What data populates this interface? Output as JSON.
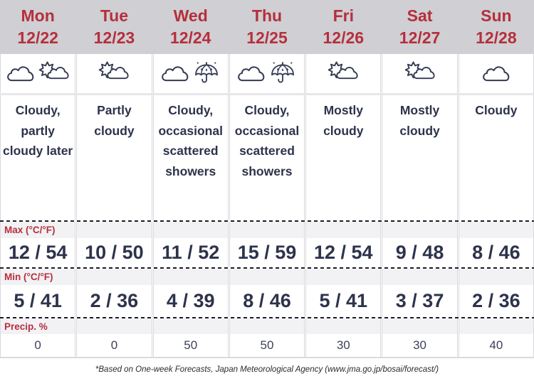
{
  "colors": {
    "header_bg": "#cfcfd4",
    "accent_red": "#b52f3b",
    "text_dark": "#2d334b",
    "band_bg": "#f2f2f5",
    "icon_stroke": "#333a52"
  },
  "rows": {
    "max_label": "Max (°C/°F)",
    "min_label": "Min (°C/°F)",
    "precip_label": "Precip. %"
  },
  "days": [
    {
      "day": "Mon",
      "date": "12/22",
      "icons": [
        "cloud",
        "sun-behind-cloud"
      ],
      "description": "Cloudy, partly cloudy later",
      "max": "12 / 54",
      "min": "5 / 41",
      "precip": "0"
    },
    {
      "day": "Tue",
      "date": "12/23",
      "icons": [
        "sun-behind-cloud"
      ],
      "description": "Partly cloudy",
      "max": "10 / 50",
      "min": "2 / 36",
      "precip": "0"
    },
    {
      "day": "Wed",
      "date": "12/24",
      "icons": [
        "cloud",
        "umbrella-rain"
      ],
      "description": "Cloudy, occasional scattered showers",
      "max": "11 / 52",
      "min": "4 / 39",
      "precip": "50"
    },
    {
      "day": "Thu",
      "date": "12/25",
      "icons": [
        "cloud",
        "umbrella-rain"
      ],
      "description": "Cloudy, occasional scattered showers",
      "max": "15 / 59",
      "min": "8 / 46",
      "precip": "50"
    },
    {
      "day": "Fri",
      "date": "12/26",
      "icons": [
        "sun-behind-cloud"
      ],
      "description": "Mostly cloudy",
      "max": "12 / 54",
      "min": "5 / 41",
      "precip": "30"
    },
    {
      "day": "Sat",
      "date": "12/27",
      "icons": [
        "sun-behind-cloud"
      ],
      "description": "Mostly cloudy",
      "max": "9 / 48",
      "min": "3 / 37",
      "precip": "30"
    },
    {
      "day": "Sun",
      "date": "12/28",
      "icons": [
        "cloud"
      ],
      "description": "Cloudy",
      "max": "8 / 46",
      "min": "2 / 36",
      "precip": "40"
    }
  ],
  "footer": {
    "note": "*Based on One-week Forecasts, Japan Meteorological Agency (www.jma.go.jp/bosai/forecast/)"
  },
  "chart_data": {
    "type": "table",
    "title": "One-week weather forecast 12/22–12/28",
    "columns": [
      "Mon 12/22",
      "Tue 12/23",
      "Wed 12/24",
      "Thu 12/25",
      "Fri 12/26",
      "Sat 12/27",
      "Sun 12/28"
    ],
    "rows": {
      "condition": [
        "Cloudy, partly cloudy later",
        "Partly cloudy",
        "Cloudy, occasional scattered showers",
        "Cloudy, occasional scattered showers",
        "Mostly cloudy",
        "Mostly cloudy",
        "Cloudy"
      ],
      "max_c": [
        12,
        10,
        11,
        15,
        12,
        9,
        8
      ],
      "max_f": [
        54,
        50,
        52,
        59,
        54,
        48,
        46
      ],
      "min_c": [
        5,
        2,
        4,
        8,
        5,
        3,
        2
      ],
      "min_f": [
        41,
        36,
        39,
        46,
        41,
        37,
        36
      ],
      "precip_pct": [
        0,
        0,
        50,
        50,
        30,
        30,
        40
      ]
    }
  }
}
